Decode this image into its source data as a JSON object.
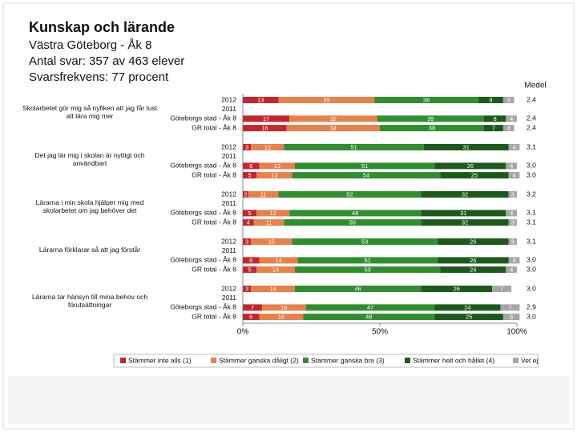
{
  "chart_data": {
    "type": "bar",
    "orientation": "horizontal",
    "stacked": true,
    "title": "Kunskap och lärande",
    "subtitle": [
      "Västra Göteborg - Åk 8",
      "Antal svar: 357 av 463 elever",
      "Svarsfrekvens: 77 procent"
    ],
    "groups": [
      "Skolarbetet gör mig så nyfiken att jag får lust att lära mig mer",
      "Det jag lär mig i skolan är nyttigt och användbart",
      "Lärarna i min skola hjälper mig med skolarbetet om jag behöver det",
      "Lärarna förklarar så att jag förstår",
      "Lärarna tar hänsyn till mina behov och förutsättningar"
    ],
    "categories": [
      "2012",
      "2011",
      "Göteborgs stad - Åk 8",
      "GR total - Åk 8",
      "2012",
      "2011",
      "Göteborgs stad - Åk 8",
      "GR total - Åk 8",
      "2012",
      "2011",
      "Göteborgs stad - Åk 8",
      "GR total - Åk 8",
      "2012",
      "2011",
      "Göteborgs stad - Åk 8",
      "GR total - Åk 8",
      "2012",
      "2011",
      "Göteborgs stad - Åk 8",
      "GR total - Åk 8"
    ],
    "series": [
      {
        "name": "Stämmer inte alls (1)",
        "color": "#c4262e",
        "values": [
          13,
          null,
          17,
          16,
          3,
          null,
          6,
          5,
          2,
          null,
          5,
          4,
          3,
          null,
          6,
          5,
          3,
          null,
          7,
          6
        ]
      },
      {
        "name": "Stämmer ganska dåligt (2)",
        "color": "#e8804a",
        "values": [
          35,
          null,
          32,
          34,
          12,
          null,
          13,
          13,
          11,
          null,
          12,
          11,
          15,
          null,
          14,
          14,
          16,
          null,
          16,
          16
        ]
      },
      {
        "name": "Stämmer ganska bra (3)",
        "color": "#2f8f2f",
        "values": [
          38,
          null,
          39,
          38,
          51,
          null,
          51,
          54,
          52,
          null,
          48,
          50,
          53,
          null,
          51,
          53,
          46,
          null,
          47,
          48
        ]
      },
      {
        "name": "Stämmer helt och hållet (4)",
        "color": "#1c5a1c",
        "values": [
          9,
          null,
          8,
          7,
          31,
          null,
          26,
          25,
          32,
          null,
          31,
          32,
          26,
          null,
          26,
          24,
          26,
          null,
          24,
          25
        ]
      },
      {
        "name": "Vet ej",
        "color": "#a6a6a6",
        "values": [
          4,
          null,
          4,
          4,
          4,
          null,
          4,
          4,
          3,
          null,
          4,
          3,
          3,
          null,
          4,
          4,
          7,
          null,
          7,
          6
        ]
      }
    ],
    "medel": {
      "title": "Medel",
      "values": [
        2.4,
        null,
        2.4,
        2.4,
        3.1,
        null,
        3.0,
        3.0,
        3.2,
        null,
        3.1,
        3.1,
        3.1,
        null,
        3.0,
        3.0,
        3.0,
        null,
        2.9,
        3.0
      ],
      "value_labels": [
        "2,4",
        null,
        "2,4",
        "2,4",
        "3,1",
        null,
        "3,0",
        "3,0",
        "3,2",
        null,
        "3,1",
        "3,1",
        "3,1",
        null,
        "3,0",
        "3,0",
        "3,0",
        null,
        "2,9",
        "3,0"
      ]
    },
    "xlim": [
      0,
      100
    ],
    "xticks": [
      {
        "value": 0,
        "label": "0%"
      },
      {
        "value": 50,
        "label": "50%"
      },
      {
        "value": 100,
        "label": "100%"
      }
    ]
  }
}
